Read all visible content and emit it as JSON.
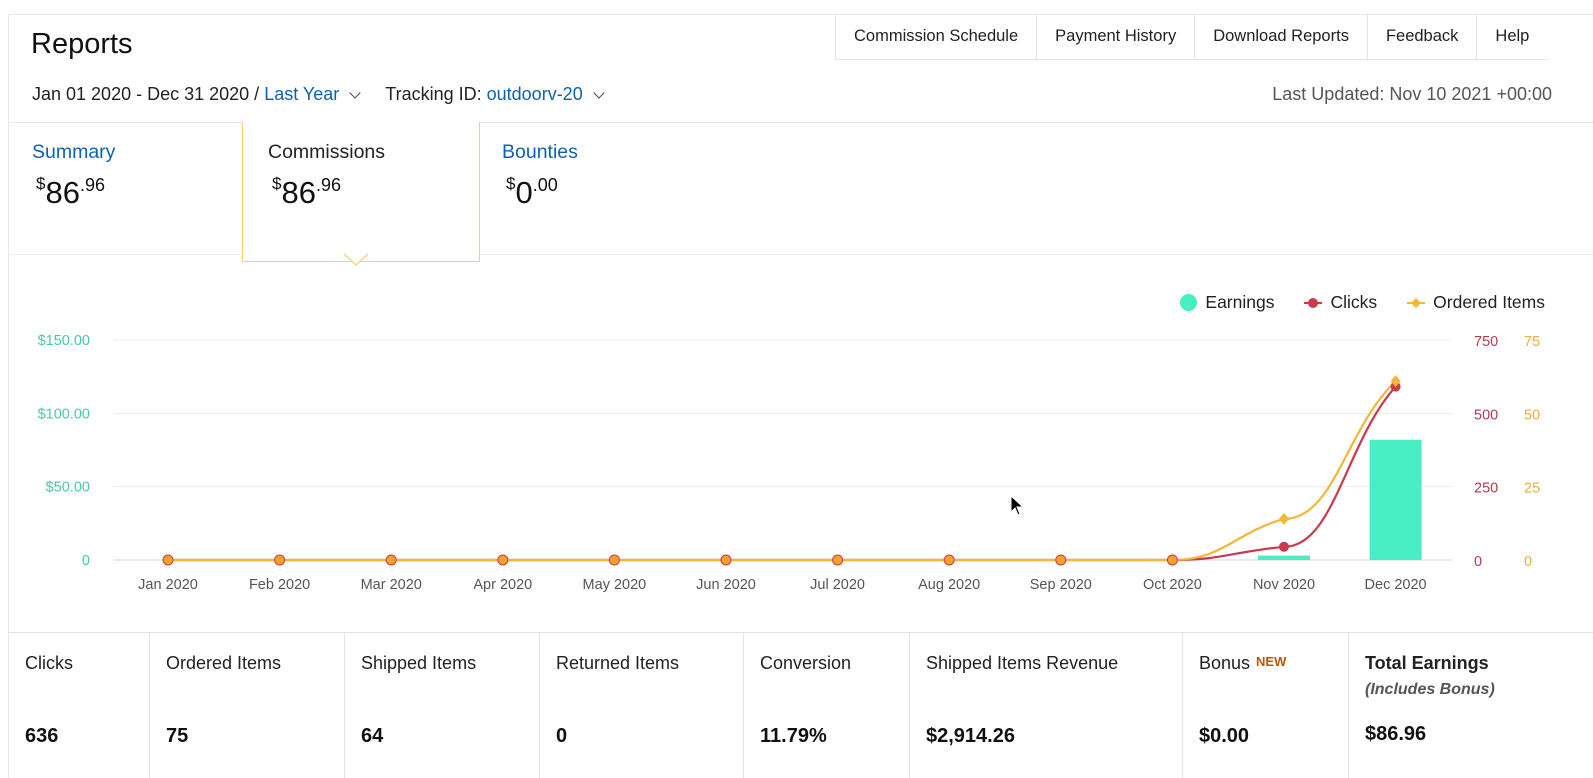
{
  "page_title": "Reports",
  "topnav": [
    "Commission Schedule",
    "Payment History",
    "Download Reports",
    "Feedback",
    "Help"
  ],
  "filters": {
    "date_range": "Jan 01 2020 - Dec 31 2020 /",
    "preset": "Last Year",
    "tracking_label": "Tracking ID:",
    "tracking_id": "outdoorv-20"
  },
  "last_updated": "Last Updated: Nov 10 2021 +00:00",
  "tabs": [
    {
      "label": "Summary",
      "currency": "$",
      "whole": "86",
      "cents": ".96"
    },
    {
      "label": "Commissions",
      "currency": "$",
      "whole": "86",
      "cents": ".96"
    },
    {
      "label": "Bounties",
      "currency": "$",
      "whole": "0",
      "cents": ".00"
    }
  ],
  "legend": {
    "earnings": "Earnings",
    "clicks": "Clicks",
    "ordered": "Ordered Items"
  },
  "colors": {
    "earnings": "#48eec4",
    "clicks": "#c93a4e",
    "ordered": "#f2b736",
    "link": "#0e61b0"
  },
  "chart_data": {
    "type": "bar",
    "categories": [
      "Jan 2020",
      "Feb 2020",
      "Mar 2020",
      "Apr 2020",
      "May 2020",
      "Jun 2020",
      "Jul 2020",
      "Aug 2020",
      "Sep 2020",
      "Oct 2020",
      "Nov 2020",
      "Dec 2020"
    ],
    "series": [
      {
        "name": "Earnings",
        "type": "bar",
        "axis": "left",
        "values": [
          0,
          0,
          0,
          0,
          0,
          0,
          0,
          0,
          0,
          0,
          3,
          82
        ]
      },
      {
        "name": "Clicks",
        "type": "line",
        "axis": "right1",
        "values": [
          0,
          0,
          0,
          0,
          0,
          0,
          0,
          0,
          0,
          0,
          45,
          591
        ]
      },
      {
        "name": "Ordered Items",
        "type": "line",
        "axis": "right2",
        "values": [
          0,
          0,
          0,
          0,
          0,
          0,
          0,
          0,
          0,
          0,
          14,
          61
        ]
      }
    ],
    "left_axis": {
      "ticks": [
        "0",
        "$50.00",
        "$100.00",
        "$150.00"
      ],
      "range": [
        0,
        150
      ]
    },
    "right1_axis": {
      "ticks": [
        "0",
        "250",
        "500",
        "750"
      ],
      "range": [
        0,
        750
      ]
    },
    "right2_axis": {
      "ticks": [
        "0",
        "25",
        "50",
        "75"
      ],
      "range": [
        0,
        75
      ]
    }
  },
  "stats": [
    {
      "label": "Clicks",
      "value": "636"
    },
    {
      "label": "Ordered Items",
      "value": "75"
    },
    {
      "label": "Shipped Items",
      "value": "64"
    },
    {
      "label": "Returned Items",
      "value": "0"
    },
    {
      "label": "Conversion",
      "value": "11.79%"
    },
    {
      "label": "Shipped Items Revenue",
      "value": "$2,914.26"
    },
    {
      "label": "Bonus",
      "badge": "NEW",
      "value": "$0.00"
    },
    {
      "label": "Total Earnings",
      "sub": "(Includes Bonus)",
      "value": "$86.96"
    }
  ]
}
